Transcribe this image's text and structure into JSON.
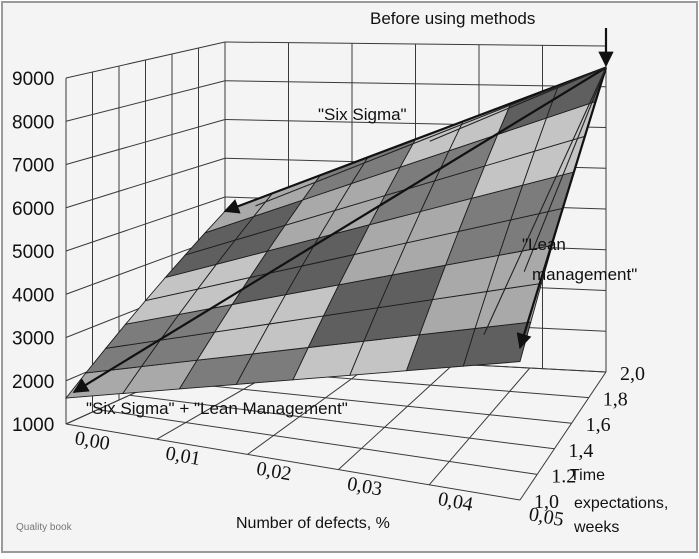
{
  "chart_data": {
    "type": "surface3d",
    "z_axis": {
      "ticks": [
        "9000",
        "8000",
        "7000",
        "6000",
        "5000",
        "4000",
        "3000",
        "2000",
        "1000"
      ],
      "range": [
        1000,
        9000
      ]
    },
    "x_axis": {
      "label": "Number of defects, %",
      "ticks": [
        "0,00",
        "0,01",
        "0,02",
        "0,03",
        "0,04",
        "0,05"
      ],
      "range": [
        0,
        0.05
      ]
    },
    "y_axis": {
      "label": "Time expectations, weeks",
      "ticks": [
        "1,0",
        "1.2",
        "1,4",
        "1,6",
        "1,8",
        "2,0"
      ],
      "range": [
        1.0,
        2.0
      ]
    },
    "corners": [
      {
        "defects": 0.0,
        "weeks": 1.0,
        "value": 1600
      },
      {
        "defects": 0.05,
        "weeks": 1.0,
        "value": 4200
      },
      {
        "defects": 0.0,
        "weeks": 2.0,
        "value": 4700
      },
      {
        "defects": 0.05,
        "weeks": 2.0,
        "value": 9000
      }
    ],
    "annotations": {
      "start": "Before using methods",
      "six_sigma": "\"Six Sigma\"",
      "lean_line1": "\"Lean",
      "lean_line2": "management\"",
      "combined": "\"Six Sigma\" + \"Lean Management\""
    },
    "grid": true
  },
  "watermark": "Quality book"
}
